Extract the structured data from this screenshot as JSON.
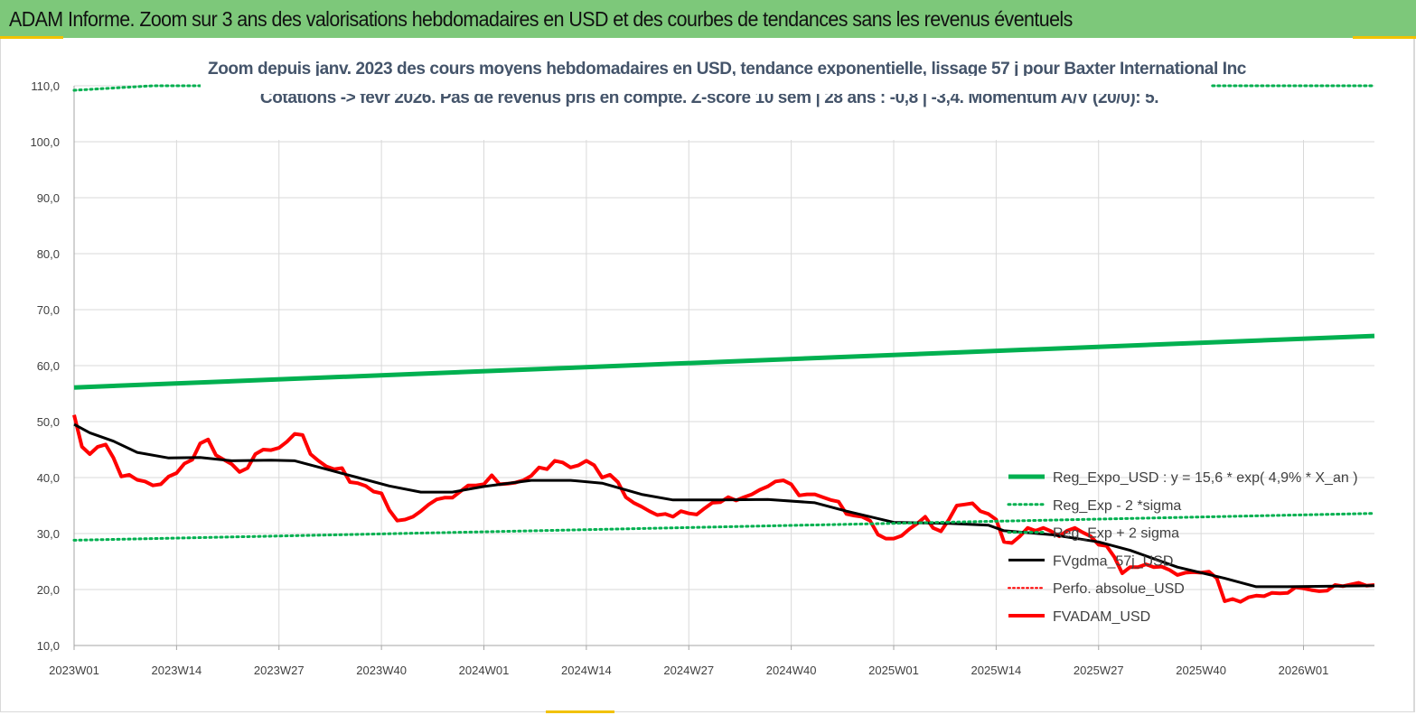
{
  "header": {
    "title": "ADAM Informe. Zoom sur 3 ans des valorisations hebdomadaires en USD et des courbes de tendances sans les revenus éventuels"
  },
  "chart_data": {
    "type": "line",
    "title_line1": "Zoom depuis janv. 2023 des cours moyens hebdomadaires en USD, tendance exponentielle, lissage 57 j pour Baxter International Inc",
    "title_line2": "Cotations -> févr 2026.  Pas de revenus pris en compte. Z-score 10 sem  | 28 ans : -0,8 | -3,4. Momentum A/V (20/0): 5.",
    "xlabel": "",
    "ylabel": "",
    "ylim": [
      10,
      110
    ],
    "yticks": [
      "10,0",
      "20,0",
      "30,0",
      "40,0",
      "50,0",
      "60,0",
      "70,0",
      "80,0",
      "90,0",
      "100,0",
      "110,0"
    ],
    "xticks": [
      {
        "label": "2023W01",
        "week": 0
      },
      {
        "label": "2023W14",
        "week": 13
      },
      {
        "label": "2023W27",
        "week": 26
      },
      {
        "label": "2023W40",
        "week": 39
      },
      {
        "label": "2024W01",
        "week": 52
      },
      {
        "label": "2024W14",
        "week": 65
      },
      {
        "label": "2024W27",
        "week": 78
      },
      {
        "label": "2024W40",
        "week": 91
      },
      {
        "label": "2025W01",
        "week": 104
      },
      {
        "label": "2025W14",
        "week": 117
      },
      {
        "label": "2025W27",
        "week": 130
      },
      {
        "label": "2025W40",
        "week": 143
      },
      {
        "label": "2026W01",
        "week": 156
      }
    ],
    "x_last_week": 165,
    "grid": true,
    "legend_position": "right",
    "series": [
      {
        "name": "Reg_Expo_USD : y = 15,6 * exp( 4,9% *  X_an )",
        "color": "#00b050",
        "style": "solid",
        "width": 5,
        "points": [
          [
            0,
            56.1
          ],
          [
            165,
            65.3
          ]
        ]
      },
      {
        "name": "Reg_Exp - 2 *sigma",
        "color": "#00b050",
        "style": "dotted",
        "width": 3,
        "points": [
          [
            0,
            28.8
          ],
          [
            165,
            33.6
          ]
        ]
      },
      {
        "name": "Reg_Exp + 2 sigma",
        "color": "#00b050",
        "style": "dotted",
        "width": 3,
        "points": [
          [
            0,
            109.2
          ],
          [
            10,
            110.0
          ],
          [
            16,
            110.0
          ],
          [
            152,
            110.0
          ],
          [
            165,
            110.0
          ]
        ]
      },
      {
        "name": "FVgdma_57j_USD",
        "color": "#000000",
        "style": "solid",
        "width": 3,
        "points": [
          [
            0,
            49.5
          ],
          [
            2,
            48.0
          ],
          [
            5,
            46.5
          ],
          [
            8,
            44.5
          ],
          [
            12,
            43.5
          ],
          [
            16,
            43.6
          ],
          [
            20,
            43.0
          ],
          [
            25,
            43.1
          ],
          [
            28,
            43.0
          ],
          [
            32,
            41.5
          ],
          [
            36,
            40.0
          ],
          [
            40,
            38.5
          ],
          [
            44,
            37.4
          ],
          [
            48,
            37.4
          ],
          [
            52,
            38.4
          ],
          [
            58,
            39.5
          ],
          [
            63,
            39.5
          ],
          [
            67,
            39.0
          ],
          [
            72,
            37.0
          ],
          [
            76,
            36.0
          ],
          [
            82,
            36.0
          ],
          [
            88,
            36.1
          ],
          [
            94,
            35.5
          ],
          [
            98,
            34.0
          ],
          [
            104,
            32.0
          ],
          [
            111,
            31.8
          ],
          [
            116,
            31.5
          ],
          [
            118,
            30.5
          ],
          [
            124,
            29.8
          ],
          [
            130,
            28.5
          ],
          [
            134,
            27.0
          ],
          [
            140,
            24.0
          ],
          [
            146,
            22.0
          ],
          [
            150,
            20.5
          ],
          [
            154,
            20.5
          ],
          [
            165,
            20.7
          ]
        ]
      },
      {
        "name": "Perfo. absolue_USD",
        "color": "#ff0000",
        "style": "dotted",
        "width": 2,
        "points": []
      },
      {
        "name": "FVADAM_USD",
        "color": "#ff0000",
        "style": "solid",
        "width": 4,
        "points": [
          [
            0,
            51.2
          ],
          [
            1,
            45.5
          ],
          [
            2,
            44.2
          ],
          [
            3,
            45.5
          ],
          [
            4,
            45.9
          ],
          [
            5,
            43.5
          ],
          [
            6,
            40.2
          ],
          [
            7,
            40.5
          ],
          [
            8,
            39.6
          ],
          [
            9,
            39.3
          ],
          [
            10,
            38.6
          ],
          [
            11,
            38.8
          ],
          [
            12,
            40.2
          ],
          [
            13,
            40.8
          ],
          [
            14,
            42.5
          ],
          [
            15,
            43.2
          ],
          [
            16,
            46.1
          ],
          [
            17,
            46.8
          ],
          [
            18,
            44.0
          ],
          [
            19,
            43.2
          ],
          [
            20,
            42.4
          ],
          [
            21,
            41.0
          ],
          [
            22,
            41.7
          ],
          [
            23,
            44.2
          ],
          [
            24,
            45.0
          ],
          [
            25,
            44.9
          ],
          [
            26,
            45.3
          ],
          [
            27,
            46.4
          ],
          [
            28,
            47.8
          ],
          [
            29,
            47.6
          ],
          [
            30,
            44.2
          ],
          [
            31,
            43.0
          ],
          [
            32,
            42.0
          ],
          [
            33,
            41.5
          ],
          [
            34,
            41.7
          ],
          [
            35,
            39.2
          ],
          [
            36,
            39.0
          ],
          [
            37,
            38.5
          ],
          [
            38,
            37.5
          ],
          [
            39,
            37.2
          ],
          [
            40,
            34.2
          ],
          [
            41,
            32.3
          ],
          [
            42,
            32.5
          ],
          [
            43,
            33.0
          ],
          [
            44,
            34.0
          ],
          [
            45,
            35.2
          ],
          [
            46,
            36.1
          ],
          [
            47,
            36.4
          ],
          [
            48,
            36.4
          ],
          [
            49,
            37.5
          ],
          [
            50,
            38.6
          ],
          [
            51,
            38.6
          ],
          [
            52,
            38.8
          ],
          [
            53,
            40.4
          ],
          [
            54,
            38.8
          ],
          [
            55,
            38.9
          ],
          [
            56,
            39.1
          ],
          [
            57,
            39.5
          ],
          [
            58,
            40.3
          ],
          [
            59,
            41.8
          ],
          [
            60,
            41.5
          ],
          [
            61,
            43.0
          ],
          [
            62,
            42.7
          ],
          [
            63,
            41.8
          ],
          [
            64,
            42.2
          ],
          [
            65,
            43.0
          ],
          [
            66,
            42.2
          ],
          [
            67,
            40.0
          ],
          [
            68,
            40.5
          ],
          [
            69,
            39.2
          ],
          [
            70,
            36.5
          ],
          [
            71,
            35.5
          ],
          [
            72,
            34.8
          ],
          [
            73,
            34.0
          ],
          [
            74,
            33.3
          ],
          [
            75,
            33.5
          ],
          [
            76,
            33.0
          ],
          [
            77,
            34.0
          ],
          [
            78,
            33.6
          ],
          [
            79,
            33.4
          ],
          [
            80,
            34.5
          ],
          [
            81,
            35.5
          ],
          [
            82,
            35.6
          ],
          [
            83,
            36.5
          ],
          [
            84,
            35.9
          ],
          [
            85,
            36.5
          ],
          [
            86,
            37.0
          ],
          [
            87,
            37.8
          ],
          [
            88,
            38.4
          ],
          [
            89,
            39.3
          ],
          [
            90,
            39.5
          ],
          [
            91,
            38.8
          ],
          [
            92,
            36.8
          ],
          [
            93,
            37.0
          ],
          [
            94,
            37.0
          ],
          [
            95,
            36.5
          ],
          [
            96,
            36.0
          ],
          [
            97,
            35.7
          ],
          [
            98,
            33.5
          ],
          [
            99,
            33.2
          ],
          [
            100,
            33.0
          ],
          [
            101,
            32.3
          ],
          [
            102,
            29.8
          ],
          [
            103,
            29.1
          ],
          [
            104,
            29.1
          ],
          [
            105,
            29.6
          ],
          [
            106,
            30.8
          ],
          [
            107,
            31.8
          ],
          [
            108,
            33.0
          ],
          [
            109,
            31.0
          ],
          [
            110,
            30.4
          ],
          [
            111,
            32.5
          ],
          [
            112,
            35.0
          ],
          [
            113,
            35.2
          ],
          [
            114,
            35.4
          ],
          [
            115,
            34.0
          ],
          [
            116,
            33.5
          ],
          [
            117,
            32.5
          ],
          [
            118,
            28.5
          ],
          [
            119,
            28.3
          ],
          [
            120,
            29.5
          ],
          [
            121,
            31.0
          ],
          [
            122,
            30.5
          ],
          [
            123,
            31.0
          ],
          [
            124,
            30.4
          ],
          [
            125,
            29.5
          ],
          [
            126,
            30.5
          ],
          [
            127,
            31.0
          ],
          [
            128,
            30.2
          ],
          [
            129,
            29.5
          ],
          [
            130,
            28.0
          ],
          [
            131,
            27.8
          ],
          [
            132,
            25.8
          ],
          [
            133,
            22.9
          ],
          [
            134,
            24.0
          ],
          [
            135,
            24.0
          ],
          [
            136,
            24.5
          ],
          [
            137,
            24.0
          ],
          [
            138,
            24.1
          ],
          [
            139,
            23.5
          ],
          [
            140,
            22.6
          ],
          [
            141,
            23.0
          ],
          [
            142,
            23.1
          ],
          [
            143,
            23.0
          ],
          [
            144,
            23.2
          ],
          [
            145,
            22.0
          ],
          [
            146,
            17.9
          ],
          [
            147,
            18.3
          ],
          [
            148,
            17.8
          ],
          [
            149,
            18.6
          ],
          [
            150,
            18.9
          ],
          [
            151,
            18.8
          ],
          [
            152,
            19.4
          ],
          [
            153,
            19.3
          ],
          [
            154,
            19.4
          ],
          [
            155,
            20.4
          ],
          [
            156,
            20.2
          ],
          [
            157,
            19.9
          ],
          [
            158,
            19.7
          ],
          [
            159,
            19.8
          ],
          [
            160,
            20.8
          ],
          [
            161,
            20.6
          ],
          [
            162,
            20.9
          ],
          [
            163,
            21.2
          ],
          [
            164,
            20.7
          ],
          [
            165,
            20.8
          ]
        ]
      }
    ]
  }
}
